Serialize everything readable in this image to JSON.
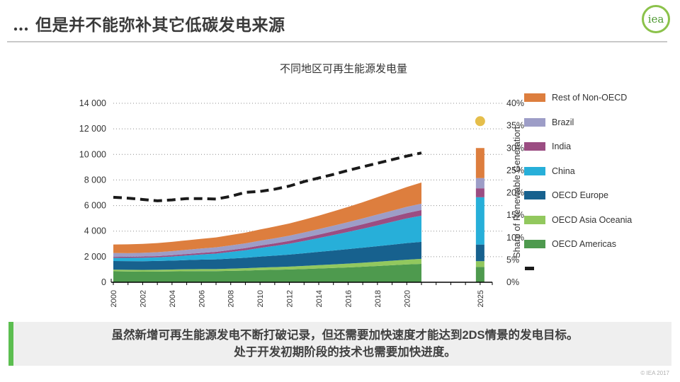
{
  "slide": {
    "title": "… 但是并不能弥补其它低碳发电来源",
    "logo_text": "iea",
    "footer": "© IEA 2017",
    "banner": {
      "line1": "虽然新增可再生能源发电不断打破记录，但还需要加快速度才能达到2DS情景的发电目标。",
      "line2": "处于开发初期阶段的技术也需要加快进度。",
      "accent_color": "#5cbe50",
      "background": "#efefef"
    }
  },
  "chart_data": {
    "type": "area",
    "title": "不同地区可再生能源发电量",
    "x": [
      2000,
      2001,
      2002,
      2003,
      2004,
      2005,
      2006,
      2007,
      2008,
      2009,
      2010,
      2011,
      2012,
      2013,
      2014,
      2015,
      2016,
      2017,
      2018,
      2019,
      2020,
      2021
    ],
    "series": [
      {
        "name": "OECD Americas",
        "color": "#4e9a4e",
        "values": [
          860,
          845,
          830,
          835,
          850,
          865,
          875,
          870,
          895,
          915,
          955,
          975,
          1000,
          1040,
          1080,
          1120,
          1160,
          1215,
          1275,
          1335,
          1395,
          1440
        ]
      },
      {
        "name": "OECD Asia Oceania",
        "color": "#92c85e",
        "values": [
          130,
          133,
          137,
          141,
          146,
          152,
          158,
          164,
          172,
          182,
          196,
          210,
          226,
          242,
          260,
          278,
          298,
          314,
          330,
          350,
          370,
          390
        ]
      },
      {
        "name": "OECD Europe",
        "color": "#17618e",
        "values": [
          670,
          676,
          682,
          690,
          700,
          718,
          738,
          758,
          788,
          818,
          858,
          898,
          938,
          988,
          1038,
          1088,
          1138,
          1178,
          1218,
          1258,
          1298,
          1330
        ]
      },
      {
        "name": "China",
        "color": "#27afd9",
        "values": [
          242,
          252,
          268,
          284,
          318,
          358,
          400,
          452,
          520,
          590,
          678,
          760,
          852,
          960,
          1078,
          1208,
          1338,
          1480,
          1628,
          1778,
          1928,
          2050
        ]
      },
      {
        "name": "India",
        "color": "#9b4d82",
        "values": [
          85,
          90,
          95,
          100,
          106,
          114,
          124,
          134,
          148,
          164,
          182,
          202,
          224,
          248,
          274,
          300,
          326,
          350,
          374,
          398,
          420,
          440
        ]
      },
      {
        "name": "Brazil",
        "color": "#9d9dc7",
        "values": [
          300,
          282,
          292,
          302,
          318,
          334,
          344,
          354,
          364,
          374,
          384,
          394,
          404,
          414,
          424,
          434,
          444,
          458,
          470,
          480,
          490,
          500
        ]
      },
      {
        "name": "Rest of Non-OECD",
        "color": "#dd7e3e",
        "values": [
          665,
          688,
          700,
          712,
          726,
          740,
          756,
          776,
          806,
          836,
          876,
          916,
          956,
          1006,
          1056,
          1116,
          1186,
          1266,
          1356,
          1446,
          1546,
          1650
        ]
      }
    ],
    "line_series": {
      "name": "Share of renewable generation",
      "axis": "right",
      "style": "dashed-black",
      "values_pct": [
        19.0,
        18.8,
        18.5,
        18.2,
        18.4,
        18.7,
        18.7,
        18.6,
        19.2,
        20.1,
        20.3,
        20.8,
        21.5,
        22.5,
        23.3,
        24.1,
        25.0,
        25.8,
        26.6,
        27.4,
        28.2,
        28.9
      ]
    },
    "bar_2025": {
      "x": 2025,
      "segments": [
        {
          "name": "OECD Americas",
          "color": "#4e9a4e",
          "value": 1200
        },
        {
          "name": "OECD Asia Oceania",
          "color": "#92c85e",
          "value": 450
        },
        {
          "name": "OECD Europe",
          "color": "#17618e",
          "value": 1300
        },
        {
          "name": "China",
          "color": "#27afd9",
          "value": 3700
        },
        {
          "name": "India",
          "color": "#9b4d82",
          "value": 700
        },
        {
          "name": "Brazil",
          "color": "#9d9dc7",
          "value": 800
        },
        {
          "name": "Rest of Non-OECD",
          "color": "#dd7e3e",
          "value": 2350
        }
      ]
    },
    "dot_2025": {
      "x": 2025,
      "value_pct": 36,
      "color": "#e5be4b"
    },
    "left_axis": {
      "min": 0,
      "max": 14000,
      "tick_labels": [
        "0",
        "2 000",
        "4 000",
        "6 000",
        "8 000",
        "10 000",
        "12 000",
        "14 000"
      ]
    },
    "right_axis": {
      "min": 0,
      "max": 40,
      "tick_labels": [
        "0%",
        "5%",
        "10%",
        "15%",
        "20%",
        "25%",
        "30%",
        "35%",
        "40%"
      ],
      "title": "Share of Renewable Generation"
    },
    "x_tick_labels": [
      "2000",
      "2002",
      "2004",
      "2006",
      "2008",
      "2010",
      "2012",
      "2014",
      "2016",
      "2018",
      "2020",
      "2025"
    ],
    "legend_order": [
      "Rest of Non-OECD",
      "Brazil",
      "India",
      "China",
      "OECD Europe",
      "OECD Asia Oceania",
      "OECD Americas"
    ],
    "grid": "dotted-horizontal",
    "legend_position": "right"
  }
}
